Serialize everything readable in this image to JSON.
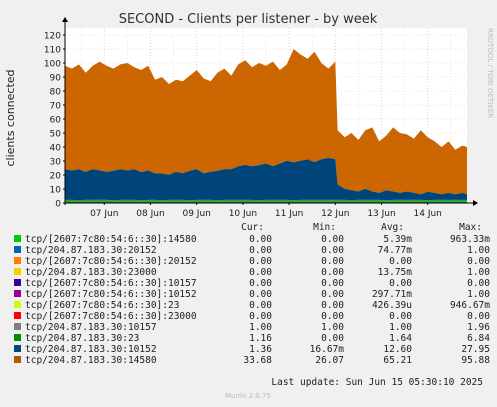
{
  "chart_data": {
    "type": "area",
    "title": "SECOND - Clients per listener - by week",
    "ylabel": "clients connected",
    "side_label": "RRDTOOL / TOBI OETIKER",
    "ylim": [
      0,
      125
    ],
    "yticks": [
      0,
      10,
      20,
      30,
      40,
      50,
      60,
      70,
      80,
      90,
      100,
      110,
      120
    ],
    "x_ticks": [
      "07 Jun",
      "08 Jun",
      "09 Jun",
      "10 Jun",
      "11 Jun",
      "12 Jun",
      "13 Jun",
      "14 Jun"
    ],
    "x_day_index": [
      0,
      1,
      2,
      3,
      4,
      5,
      6,
      7
    ],
    "x_range": [
      -0.85,
      7.85
    ],
    "grid": true,
    "colors": {
      "background": "#f0f0f0",
      "plot_background": "#ffffff",
      "grid": "#e6c8c8",
      "axis": "#000000",
      "stack_14580": "#cc6600",
      "stack_10152": "#00457a",
      "stack_23": "#2ea12e",
      "stack_10157": "#0f8f3f"
    },
    "stack_x": [
      -0.85,
      -0.7,
      -0.55,
      -0.4,
      -0.25,
      -0.1,
      0.05,
      0.2,
      0.35,
      0.5,
      0.65,
      0.8,
      0.95,
      1.1,
      1.25,
      1.4,
      1.55,
      1.7,
      1.85,
      2.0,
      2.15,
      2.3,
      2.45,
      2.6,
      2.75,
      2.9,
      3.05,
      3.2,
      3.35,
      3.5,
      3.65,
      3.8,
      3.95,
      4.1,
      4.25,
      4.4,
      4.55,
      4.7,
      4.85,
      5.0,
      5.05,
      5.2,
      5.35,
      5.5,
      5.65,
      5.8,
      5.95,
      6.1,
      6.25,
      6.4,
      6.55,
      6.7,
      6.85,
      7.0,
      7.15,
      7.3,
      7.45,
      7.6,
      7.75,
      7.85
    ],
    "stack_totals": [
      98,
      96,
      99,
      93,
      98,
      101,
      98,
      96,
      99,
      100,
      97,
      95,
      98,
      88,
      90,
      85,
      88,
      87,
      91,
      95,
      89,
      87,
      93,
      96,
      91,
      99,
      102,
      97,
      100,
      98,
      101,
      95,
      99,
      110,
      106,
      103,
      108,
      100,
      96,
      101,
      52,
      47,
      50,
      45,
      52,
      54,
      44,
      48,
      54,
      50,
      49,
      46,
      52,
      47,
      44,
      40,
      44,
      38,
      41,
      40
    ],
    "stack_10152": [
      22,
      21,
      22,
      20,
      22,
      21,
      20,
      21,
      22,
      21,
      22,
      20,
      21,
      19,
      19,
      18,
      20,
      19,
      21,
      22,
      19,
      20,
      21,
      22,
      22,
      24,
      25,
      24,
      25,
      26,
      24,
      26,
      28,
      27,
      28,
      29,
      27,
      29,
      30,
      29,
      11,
      8,
      7,
      6,
      8,
      6,
      5,
      7,
      6,
      5,
      6,
      5,
      4,
      6,
      5,
      4,
      5,
      4,
      5,
      4
    ],
    "stack_23": [
      1.2,
      1.2,
      1.1,
      1.2,
      1.2,
      1.3,
      1.2,
      1.1,
      1.2,
      1.2,
      1.2,
      1.1,
      1.2,
      1.2,
      1.1,
      1.2,
      1.2,
      1.2,
      1.1,
      1.2,
      1.2,
      1.2,
      1.1,
      1.2,
      1.2,
      1.2,
      1.2,
      1.2,
      1.1,
      1.2,
      1.2,
      1.2,
      1.2,
      1.1,
      1.2,
      1.2,
      1.2,
      1.2,
      1.2,
      1.2,
      1.2,
      1.2,
      1.1,
      1.2,
      1.2,
      1.2,
      1.2,
      1.1,
      1.2,
      1.2,
      1.2,
      1.2,
      1.2,
      1.1,
      1.2,
      1.2,
      1.2,
      1.2,
      1.2,
      1.2
    ],
    "stack_10157": [
      1,
      1,
      1,
      1,
      1,
      1,
      1,
      1,
      1,
      1,
      1,
      1,
      1,
      1,
      1,
      1,
      1,
      1,
      1,
      1,
      1,
      1,
      1,
      1,
      1,
      1,
      1,
      1,
      1,
      1,
      1,
      1,
      1,
      1,
      1,
      1,
      1,
      1,
      1,
      1,
      1,
      1,
      1,
      1,
      1,
      1,
      1,
      1,
      1,
      1,
      1,
      1,
      1,
      1,
      1,
      1,
      1,
      1,
      1,
      1
    ],
    "legend": {
      "headers": [
        "Cur:",
        "Min:",
        "Avg:",
        "Max:"
      ],
      "rows": [
        {
          "color": "#00cc00",
          "label": "tcp/[2607:7c80:54:6::30]:14580",
          "cur": "0.00",
          "min": "0.00",
          "avg": "5.39m",
          "max": "963.33m"
        },
        {
          "color": "#0066b3",
          "label": "tcp/204.87.183.30:20152",
          "cur": "0.00",
          "min": "0.00",
          "avg": "74.77m",
          "max": "1.00"
        },
        {
          "color": "#ff8000",
          "label": "tcp/[2607:7c80:54:6::30]:20152",
          "cur": "0.00",
          "min": "0.00",
          "avg": "0.00",
          "max": "0.00"
        },
        {
          "color": "#ffcc00",
          "label": "tcp/204.87.183.30:23000",
          "cur": "0.00",
          "min": "0.00",
          "avg": "13.75m",
          "max": "1.00"
        },
        {
          "color": "#330099",
          "label": "tcp/[2607:7c80:54:6::30]:10157",
          "cur": "0.00",
          "min": "0.00",
          "avg": "0.00",
          "max": "0.00"
        },
        {
          "color": "#990099",
          "label": "tcp/[2607:7c80:54:6::30]:10152",
          "cur": "0.00",
          "min": "0.00",
          "avg": "297.71m",
          "max": "1.00"
        },
        {
          "color": "#ccff00",
          "label": "tcp/[2607:7c80:54:6::30]:23",
          "cur": "0.00",
          "min": "0.00",
          "avg": "426.39u",
          "max": "946.67m"
        },
        {
          "color": "#ff0000",
          "label": "tcp/[2607:7c80:54:6::30]:23000",
          "cur": "0.00",
          "min": "0.00",
          "avg": "0.00",
          "max": "0.00"
        },
        {
          "color": "#808080",
          "label": "tcp/204.87.183.30:10157",
          "cur": "1.00",
          "min": "1.00",
          "avg": "1.00",
          "max": "1.96"
        },
        {
          "color": "#008f00",
          "label": "tcp/204.87.183.30:23",
          "cur": "1.16",
          "min": "0.00",
          "avg": "1.64",
          "max": "6.84"
        },
        {
          "color": "#00487d",
          "label": "tcp/204.87.183.30:10152",
          "cur": "1.36",
          "min": "16.67m",
          "avg": "12.60",
          "max": "27.95"
        },
        {
          "color": "#b35a00",
          "label": "tcp/204.87.183.30:14580",
          "cur": "33.68",
          "min": "26.07",
          "avg": "65.21",
          "max": "95.88"
        }
      ]
    },
    "last_update": "Last update: Sun Jun 15 05:30:10 2025",
    "footer": "Munin 2.0.75"
  }
}
